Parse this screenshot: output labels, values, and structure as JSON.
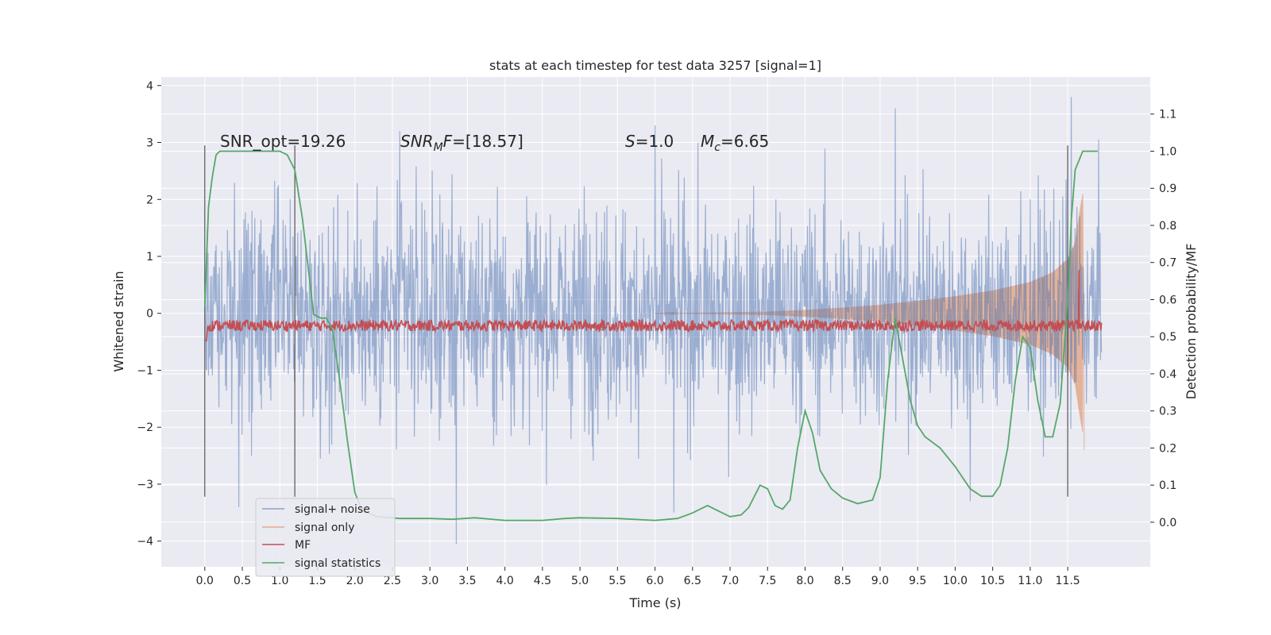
{
  "chart_data": {
    "type": "line",
    "title": "stats at each timestep for test data 3257 [signal=1]",
    "xlabel": "Time (s)",
    "ylabel": "Whitened strain",
    "y2label": "Detection probability/MF",
    "xlim": [
      -0.58,
      12.6
    ],
    "ylim": [
      -4.45,
      4.15
    ],
    "y2lim": [
      -0.12,
      1.2
    ],
    "x_ticks": [
      0.0,
      0.5,
      1.0,
      1.5,
      2.0,
      2.5,
      3.0,
      3.5,
      4.0,
      4.5,
      5.0,
      5.5,
      6.0,
      6.5,
      7.0,
      7.5,
      8.0,
      8.5,
      9.0,
      9.5,
      10.0,
      10.5,
      11.0,
      11.5
    ],
    "x_tick_labels": [
      "0.0",
      "0.5",
      "1.0",
      "1.5",
      "2.0",
      "2.5",
      "3.0",
      "3.5",
      "4.0",
      "4.5",
      "5.0",
      "5.5",
      "6.0",
      "6.5",
      "7.0",
      "7.5",
      "8.0",
      "8.5",
      "9.0",
      "9.5",
      "10.0",
      "10.5",
      "11.0",
      "11.5"
    ],
    "y_ticks": [
      -4,
      -3,
      -2,
      -1,
      0,
      1,
      2,
      3,
      4
    ],
    "y_tick_labels": [
      "−4",
      "−3",
      "−2",
      "−1",
      "0",
      "1",
      "2",
      "3",
      "4"
    ],
    "y2_ticks": [
      0.0,
      0.1,
      0.2,
      0.3,
      0.4,
      0.5,
      0.6,
      0.7,
      0.8,
      0.9,
      1.0,
      1.1
    ],
    "y2_tick_labels": [
      "0.0",
      "0.1",
      "0.2",
      "0.3",
      "0.4",
      "0.5",
      "0.6",
      "0.7",
      "0.8",
      "0.9",
      "1.0",
      "1.1"
    ],
    "grid": true,
    "legend_position": "lower-left",
    "colors": {
      "background": "#eaeaf2",
      "grid": "#ffffff",
      "noise": "#4c72b0",
      "signal": "#dd8452",
      "mf": "#c44e52",
      "stats": "#55a868",
      "vline": "#555555"
    },
    "annotations": [
      {
        "text": "SNR_opt=19.26",
        "x": 0.2,
        "y2": 1.0
      },
      {
        "text": "SNRMF=[18.57]",
        "x": 2.6,
        "y2": 1.0
      },
      {
        "text": "S=1.0",
        "x": 5.6,
        "y2": 1.0
      },
      {
        "text": "Mc=6.65",
        "x": 6.6,
        "y2": 1.0
      }
    ],
    "vertical_lines": [
      0.0,
      1.2,
      11.5
    ],
    "series": [
      {
        "name": "signal+ noise",
        "axis": "left",
        "x_range": [
          0.0,
          11.95
        ],
        "approx_amplitude_std": 0.95,
        "notable_peaks": [
          {
            "x": 2.6,
            "y": 3.2
          },
          {
            "x": 6.0,
            "y": 3.3
          },
          {
            "x": 9.2,
            "y": 3.6
          },
          {
            "x": 11.55,
            "y": 3.8
          },
          {
            "x": 3.35,
            "y": -4.05
          },
          {
            "x": 6.25,
            "y": -3.5
          },
          {
            "x": 10.2,
            "y": -3.3
          },
          {
            "x": 0.45,
            "y": -3.4
          }
        ]
      },
      {
        "name": "signal only",
        "axis": "left",
        "envelope": {
          "x": [
            7.5,
            8.0,
            8.5,
            9.0,
            9.5,
            10.0,
            10.5,
            11.0,
            11.3,
            11.5,
            11.6,
            11.65,
            11.7
          ],
          "amplitude": [
            0.03,
            0.06,
            0.1,
            0.15,
            0.22,
            0.3,
            0.4,
            0.55,
            0.72,
            0.95,
            1.25,
            1.7,
            2.1
          ]
        }
      },
      {
        "name": "MF",
        "axis": "right",
        "baseline": 0.53,
        "noise_amplitude": 0.015,
        "spike": {
          "x": 11.65,
          "value": 0.68
        }
      },
      {
        "name": "signal statistics",
        "axis": "right",
        "x": [
          0.0,
          0.05,
          0.1,
          0.15,
          0.2,
          0.3,
          0.5,
          0.8,
          1.0,
          1.1,
          1.2,
          1.3,
          1.4,
          1.45,
          1.55,
          1.62,
          1.7,
          1.8,
          1.9,
          2.0,
          2.1,
          2.3,
          2.6,
          3.0,
          3.3,
          3.6,
          4.0,
          4.5,
          4.8,
          5.0,
          5.5,
          6.0,
          6.3,
          6.5,
          6.7,
          6.85,
          7.0,
          7.15,
          7.25,
          7.4,
          7.5,
          7.6,
          7.7,
          7.8,
          7.9,
          8.0,
          8.1,
          8.2,
          8.35,
          8.5,
          8.7,
          8.9,
          9.0,
          9.1,
          9.2,
          9.3,
          9.4,
          9.5,
          9.6,
          9.8,
          10.0,
          10.2,
          10.35,
          10.5,
          10.6,
          10.7,
          10.8,
          10.9,
          11.0,
          11.1,
          11.2,
          11.3,
          11.4,
          11.5,
          11.55,
          11.6,
          11.7,
          11.8,
          11.9
        ],
        "values": [
          0.58,
          0.85,
          0.93,
          0.99,
          1.0,
          1.0,
          1.0,
          1.0,
          1.0,
          0.99,
          0.95,
          0.82,
          0.65,
          0.56,
          0.55,
          0.55,
          0.52,
          0.38,
          0.22,
          0.08,
          0.03,
          0.015,
          0.01,
          0.01,
          0.008,
          0.012,
          0.005,
          0.005,
          0.01,
          0.012,
          0.01,
          0.005,
          0.01,
          0.025,
          0.045,
          0.03,
          0.015,
          0.02,
          0.04,
          0.1,
          0.09,
          0.045,
          0.035,
          0.06,
          0.2,
          0.3,
          0.24,
          0.14,
          0.09,
          0.065,
          0.05,
          0.06,
          0.12,
          0.38,
          0.55,
          0.44,
          0.33,
          0.26,
          0.23,
          0.2,
          0.15,
          0.09,
          0.07,
          0.07,
          0.1,
          0.2,
          0.38,
          0.5,
          0.47,
          0.33,
          0.23,
          0.23,
          0.32,
          0.6,
          0.82,
          0.95,
          1.0,
          1.0,
          1.0
        ]
      }
    ]
  }
}
